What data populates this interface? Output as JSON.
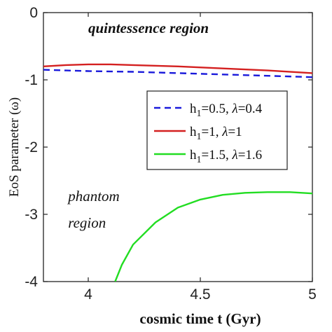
{
  "chart_data": {
    "type": "line",
    "xlabel": "cosmic time t (Gyr)",
    "ylabel": "EoS parameter (ω)",
    "xlim": [
      3.8,
      5.0
    ],
    "ylim": [
      -4,
      0
    ],
    "xticks": [
      4,
      4.5,
      5
    ],
    "xtick_labels": [
      "4",
      "4.5",
      "5"
    ],
    "yticks": [
      0,
      -1,
      -2,
      -3,
      -4
    ],
    "ytick_labels": [
      "0",
      "-1",
      "-2",
      "-3",
      "-4"
    ],
    "grid": false,
    "legend_position": "middle-right",
    "annotations": [
      {
        "text": "quintessence region",
        "style": "bold-italic",
        "x": 4.0,
        "y": -0.3
      },
      {
        "text": "phantom",
        "style": "italic",
        "x": 3.91,
        "y": -2.8
      },
      {
        "text": "region",
        "style": "italic",
        "x": 3.91,
        "y": -3.2
      }
    ],
    "series": [
      {
        "name": "h1=0.5, λ=0.4",
        "legend": {
          "base": "h",
          "sub": "1",
          "rest": "=0.5, ",
          "lambda_rest": "=0.4"
        },
        "color": "#1a1adb",
        "dash": "dashed",
        "x": [
          3.8,
          3.9,
          4.0,
          4.2,
          4.4,
          4.6,
          4.8,
          5.0
        ],
        "y": [
          -0.85,
          -0.86,
          -0.87,
          -0.88,
          -0.9,
          -0.92,
          -0.94,
          -0.96
        ]
      },
      {
        "name": "h1=1, λ=1",
        "legend": {
          "base": "h",
          "sub": "1",
          "rest": "=1, ",
          "lambda_rest": "=1"
        },
        "color": "#d42020",
        "dash": "solid",
        "x": [
          3.8,
          3.9,
          4.0,
          4.1,
          4.2,
          4.4,
          4.6,
          4.8,
          5.0
        ],
        "y": [
          -0.8,
          -0.78,
          -0.77,
          -0.77,
          -0.78,
          -0.8,
          -0.83,
          -0.86,
          -0.9
        ]
      },
      {
        "name": "h1=1.5, λ=1.6",
        "legend": {
          "base": "h",
          "sub": "1",
          "rest": "=1.5, ",
          "lambda_rest": "=1.6"
        },
        "color": "#22dd22",
        "dash": "solid",
        "x": [
          4.12,
          4.15,
          4.2,
          4.3,
          4.4,
          4.5,
          4.6,
          4.7,
          4.8,
          4.9,
          5.0
        ],
        "y": [
          -4.0,
          -3.75,
          -3.45,
          -3.12,
          -2.9,
          -2.78,
          -2.71,
          -2.68,
          -2.67,
          -2.67,
          -2.69
        ]
      }
    ]
  }
}
